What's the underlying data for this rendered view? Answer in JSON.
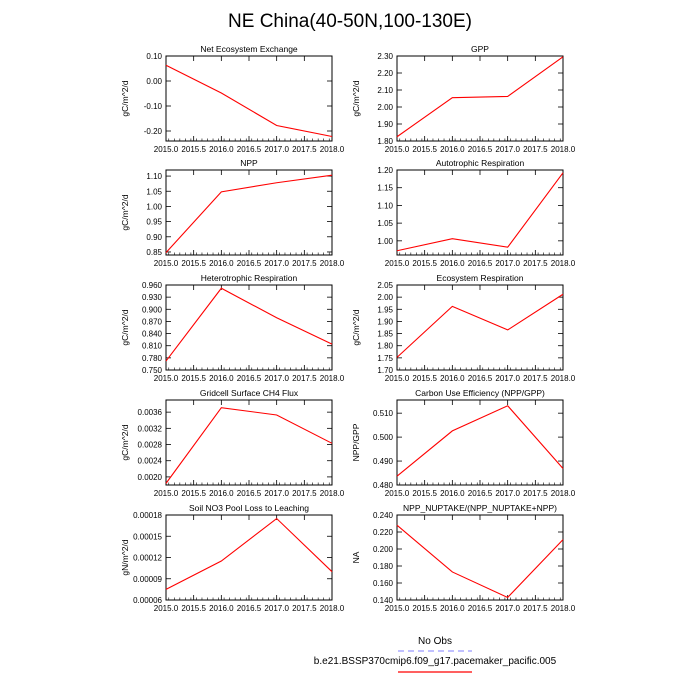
{
  "figure": {
    "title": "NE China(40-50N,100-130E)",
    "legend": {
      "obs_label": "No Obs",
      "model_label": "b.e21.BSSP370cmip6.f09_g17.pacemaker_pacific.005",
      "obs_color": "#9a9aff",
      "model_color": "#ff0000"
    }
  },
  "chart_data": [
    {
      "type": "line",
      "title": "Net Ecosystem Exchange",
      "ylabel": "gC/m^2/d",
      "xlabel": "",
      "x": [
        2015,
        2016,
        2017,
        2018
      ],
      "xlim": [
        2015,
        2018
      ],
      "xticks": [
        "2015.0",
        "2015.5",
        "2016.0",
        "2016.5",
        "2017.0",
        "2017.5",
        "2018.0"
      ],
      "ylim": [
        -0.24,
        0.1
      ],
      "yticks": [
        {
          "v": 0.1,
          "l": "0.10"
        },
        {
          "v": 0.0,
          "l": "0.00"
        },
        {
          "v": -0.1,
          "l": "-0.10"
        },
        {
          "v": -0.2,
          "l": "-0.20"
        }
      ],
      "series": [
        {
          "name": "b.e21.BSSP370cmip6.f09_g17.pacemaker_pacific.005",
          "color": "#ff0000",
          "values": [
            0.063,
            -0.048,
            -0.178,
            -0.222
          ]
        }
      ]
    },
    {
      "type": "line",
      "title": "GPP",
      "ylabel": "gC/m^2/d",
      "xlabel": "",
      "x": [
        2015,
        2016,
        2017,
        2018
      ],
      "xlim": [
        2015,
        2018
      ],
      "xticks": [
        "2015.0",
        "2015.5",
        "2016.0",
        "2016.5",
        "2017.0",
        "2017.5",
        "2018.0"
      ],
      "ylim": [
        1.8,
        2.3
      ],
      "yticks": [
        {
          "v": 1.8,
          "l": "1.80"
        },
        {
          "v": 1.9,
          "l": "1.90"
        },
        {
          "v": 2.0,
          "l": "2.00"
        },
        {
          "v": 2.1,
          "l": "2.10"
        },
        {
          "v": 2.2,
          "l": "2.20"
        },
        {
          "v": 2.3,
          "l": "2.30"
        }
      ],
      "series": [
        {
          "name": "b.e21.BSSP370cmip6.f09_g17.pacemaker_pacific.005",
          "color": "#ff0000",
          "values": [
            1.825,
            2.055,
            2.062,
            2.295
          ]
        }
      ]
    },
    {
      "type": "line",
      "title": "NPP",
      "ylabel": "gC/m^2/d",
      "xlabel": "",
      "x": [
        2015,
        2016,
        2017,
        2018
      ],
      "xlim": [
        2015,
        2018
      ],
      "xticks": [
        "2015.0",
        "2015.5",
        "2016.0",
        "2016.5",
        "2017.0",
        "2017.5",
        "2018.0"
      ],
      "ylim": [
        0.84,
        1.12
      ],
      "yticks": [
        {
          "v": 0.85,
          "l": "0.85"
        },
        {
          "v": 0.9,
          "l": "0.90"
        },
        {
          "v": 0.95,
          "l": "0.95"
        },
        {
          "v": 1.0,
          "l": "1.00"
        },
        {
          "v": 1.05,
          "l": "1.05"
        },
        {
          "v": 1.1,
          "l": "1.10"
        }
      ],
      "series": [
        {
          "name": "b.e21.BSSP370cmip6.f09_g17.pacemaker_pacific.005",
          "color": "#ff0000",
          "values": [
            0.848,
            1.048,
            1.078,
            1.103
          ]
        }
      ]
    },
    {
      "type": "line",
      "title": "Autotrophic Respiration",
      "ylabel": "",
      "xlabel": "",
      "x": [
        2015,
        2016,
        2017,
        2018
      ],
      "xlim": [
        2015,
        2018
      ],
      "xticks": [
        "2015.0",
        "2015.5",
        "2016.0",
        "2016.5",
        "2017.0",
        "2017.5",
        "2018.0"
      ],
      "ylim": [
        0.96,
        1.2
      ],
      "yticks": [
        {
          "v": 1.0,
          "l": "1.00"
        },
        {
          "v": 1.05,
          "l": "1.05"
        },
        {
          "v": 1.1,
          "l": "1.10"
        },
        {
          "v": 1.15,
          "l": "1.15"
        },
        {
          "v": 1.2,
          "l": "1.20"
        }
      ],
      "series": [
        {
          "name": "b.e21.BSSP370cmip6.f09_g17.pacemaker_pacific.005",
          "color": "#ff0000",
          "values": [
            0.972,
            1.006,
            0.982,
            1.192
          ]
        }
      ]
    },
    {
      "type": "line",
      "title": "Heterotrophic Respiration",
      "ylabel": "gC/m^2/d",
      "xlabel": "",
      "x": [
        2015,
        2016,
        2017,
        2018
      ],
      "xlim": [
        2015,
        2018
      ],
      "xticks": [
        "2015.0",
        "2015.5",
        "2016.0",
        "2016.5",
        "2017.0",
        "2017.5",
        "2018.0"
      ],
      "ylim": [
        0.75,
        0.96
      ],
      "yticks": [
        {
          "v": 0.75,
          "l": "0.750"
        },
        {
          "v": 0.78,
          "l": "0.780"
        },
        {
          "v": 0.81,
          "l": "0.810"
        },
        {
          "v": 0.84,
          "l": "0.840"
        },
        {
          "v": 0.87,
          "l": "0.870"
        },
        {
          "v": 0.9,
          "l": "0.900"
        },
        {
          "v": 0.93,
          "l": "0.930"
        },
        {
          "v": 0.96,
          "l": "0.960"
        }
      ],
      "series": [
        {
          "name": "b.e21.BSSP370cmip6.f09_g17.pacemaker_pacific.005",
          "color": "#ff0000",
          "values": [
            0.772,
            0.952,
            0.879,
            0.814
          ]
        }
      ]
    },
    {
      "type": "line",
      "title": "Ecosystem Respiration",
      "ylabel": "gC/m^2/d",
      "xlabel": "",
      "x": [
        2015,
        2016,
        2017,
        2018
      ],
      "xlim": [
        2015,
        2018
      ],
      "xticks": [
        "2015.0",
        "2015.5",
        "2016.0",
        "2016.5",
        "2017.0",
        "2017.5",
        "2018.0"
      ],
      "ylim": [
        1.7,
        2.05
      ],
      "yticks": [
        {
          "v": 1.7,
          "l": "1.70"
        },
        {
          "v": 1.75,
          "l": "1.75"
        },
        {
          "v": 1.8,
          "l": "1.80"
        },
        {
          "v": 1.85,
          "l": "1.85"
        },
        {
          "v": 1.9,
          "l": "1.90"
        },
        {
          "v": 1.95,
          "l": "1.95"
        },
        {
          "v": 2.0,
          "l": "2.00"
        },
        {
          "v": 2.05,
          "l": "2.05"
        }
      ],
      "series": [
        {
          "name": "b.e21.BSSP370cmip6.f09_g17.pacemaker_pacific.005",
          "color": "#ff0000",
          "values": [
            1.752,
            1.962,
            1.865,
            2.012
          ]
        }
      ]
    },
    {
      "type": "line",
      "title": "Gridcell Surface CH4 Flux",
      "ylabel": "gC/m^2/d",
      "xlabel": "",
      "x": [
        2015,
        2016,
        2017,
        2018
      ],
      "xlim": [
        2015,
        2018
      ],
      "xticks": [
        "2015.0",
        "2015.5",
        "2016.0",
        "2016.5",
        "2017.0",
        "2017.5",
        "2018.0"
      ],
      "ylim": [
        0.0018,
        0.0039
      ],
      "yticks": [
        {
          "v": 0.002,
          "l": "0.0020"
        },
        {
          "v": 0.0024,
          "l": "0.0024"
        },
        {
          "v": 0.0028,
          "l": "0.0028"
        },
        {
          "v": 0.0032,
          "l": "0.0032"
        },
        {
          "v": 0.0036,
          "l": "0.0036"
        }
      ],
      "series": [
        {
          "name": "b.e21.BSSP370cmip6.f09_g17.pacemaker_pacific.005",
          "color": "#ff0000",
          "values": [
            0.00184,
            0.00371,
            0.00353,
            0.00283
          ]
        }
      ]
    },
    {
      "type": "line",
      "title": "Carbon Use Efficiency (NPP/GPP)",
      "ylabel": "NPP/GPP",
      "xlabel": "",
      "x": [
        2015,
        2016,
        2017,
        2018
      ],
      "xlim": [
        2015,
        2018
      ],
      "xticks": [
        "2015.0",
        "2015.5",
        "2016.0",
        "2016.5",
        "2017.0",
        "2017.5",
        "2018.0"
      ],
      "ylim": [
        0.48,
        0.5155
      ],
      "yticks": [
        {
          "v": 0.48,
          "l": "0.480"
        },
        {
          "v": 0.49,
          "l": "0.490"
        },
        {
          "v": 0.5,
          "l": "0.500"
        },
        {
          "v": 0.51,
          "l": "0.510"
        }
      ],
      "series": [
        {
          "name": "b.e21.BSSP370cmip6.f09_g17.pacemaker_pacific.005",
          "color": "#ff0000",
          "values": [
            0.4837,
            0.5026,
            0.5131,
            0.4869
          ]
        }
      ]
    },
    {
      "type": "line",
      "title": "Soil NO3 Pool Loss to Leaching",
      "ylabel": "gN/m^2/d",
      "xlabel": "",
      "x": [
        2015,
        2016,
        2017,
        2018
      ],
      "xlim": [
        2015,
        2018
      ],
      "xticks": [
        "2015.0",
        "2015.5",
        "2016.0",
        "2016.5",
        "2017.0",
        "2017.5",
        "2018.0"
      ],
      "ylim": [
        6e-05,
        0.00018
      ],
      "yticks": [
        {
          "v": 6e-05,
          "l": "0.00006"
        },
        {
          "v": 9e-05,
          "l": "0.00009"
        },
        {
          "v": 0.00012,
          "l": "0.00012"
        },
        {
          "v": 0.00015,
          "l": "0.00015"
        },
        {
          "v": 0.00018,
          "l": "0.00018"
        }
      ],
      "series": [
        {
          "name": "b.e21.BSSP370cmip6.f09_g17.pacemaker_pacific.005",
          "color": "#ff0000",
          "values": [
            7.5e-05,
            0.000115,
            0.000175,
            0.0001
          ]
        }
      ]
    },
    {
      "type": "line",
      "title": "NPP_NUPTAKE/(NPP_NUPTAKE+NPP)",
      "ylabel": "NA",
      "xlabel": "",
      "x": [
        2015,
        2016,
        2017,
        2018
      ],
      "xlim": [
        2015,
        2018
      ],
      "xticks": [
        "2015.0",
        "2015.5",
        "2016.0",
        "2016.5",
        "2017.0",
        "2017.5",
        "2018.0"
      ],
      "ylim": [
        0.14,
        0.24
      ],
      "yticks": [
        {
          "v": 0.14,
          "l": "0.140"
        },
        {
          "v": 0.16,
          "l": "0.160"
        },
        {
          "v": 0.18,
          "l": "0.180"
        },
        {
          "v": 0.2,
          "l": "0.200"
        },
        {
          "v": 0.22,
          "l": "0.220"
        },
        {
          "v": 0.24,
          "l": "0.240"
        }
      ],
      "series": [
        {
          "name": "b.e21.BSSP370cmip6.f09_g17.pacemaker_pacific.005",
          "color": "#ff0000",
          "values": [
            0.228,
            0.173,
            0.143,
            0.211
          ]
        }
      ]
    }
  ]
}
